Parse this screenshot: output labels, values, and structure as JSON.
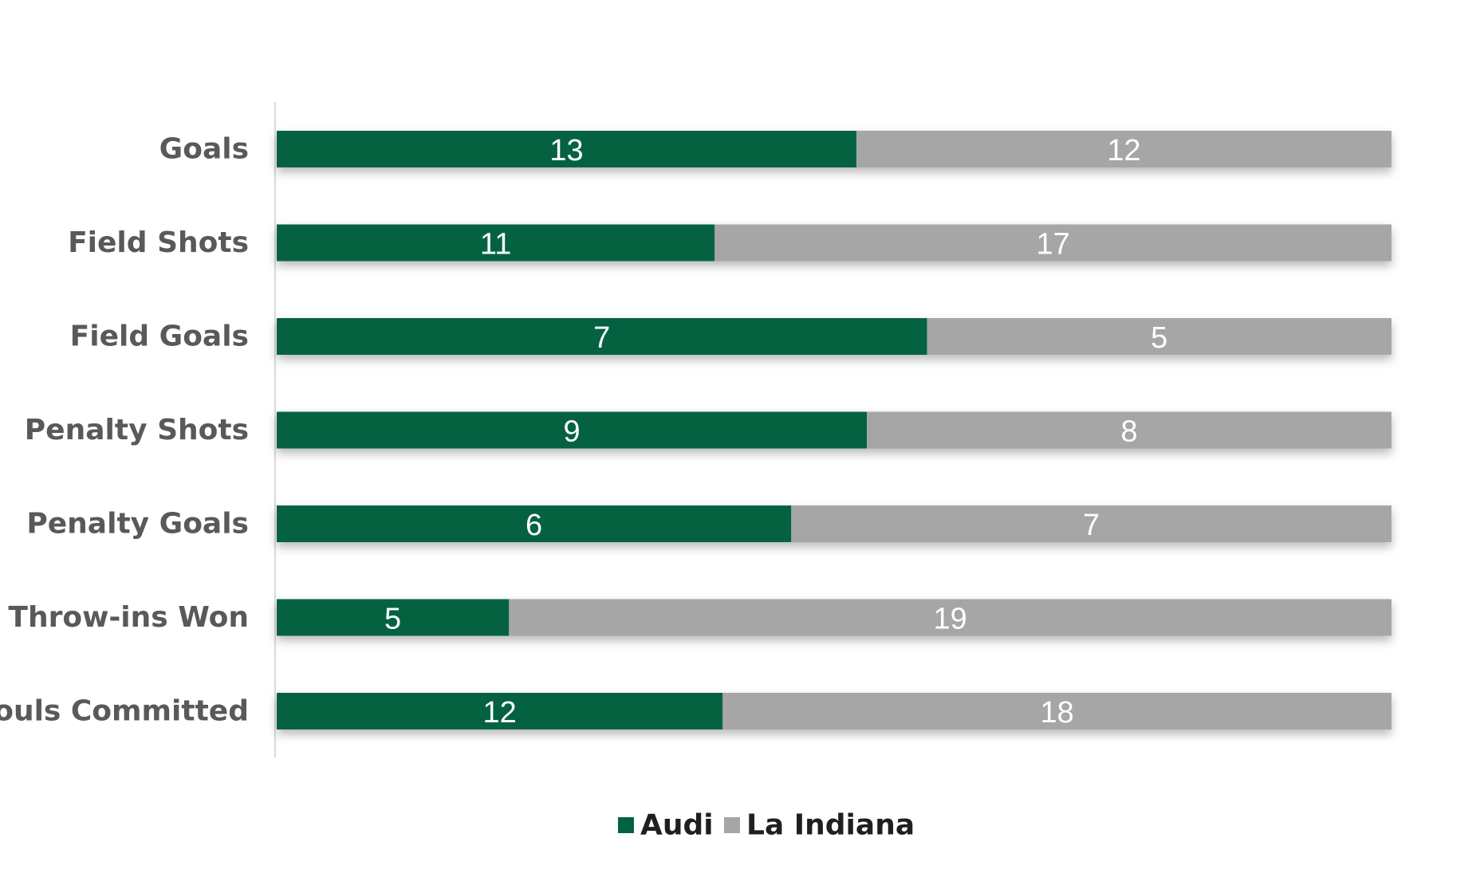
{
  "chart_data": {
    "type": "bar",
    "orientation": "horizontal",
    "stacked": "100%",
    "categories": [
      "Goals",
      "Field Shots",
      "Field Goals",
      "Penalty Shots",
      "Penalty Goals",
      "Throw-ins Won",
      "Fouls Committed"
    ],
    "series": [
      {
        "name": "Audi",
        "color": "#046241",
        "values": [
          13,
          11,
          7,
          9,
          6,
          5,
          12
        ]
      },
      {
        "name": "La Indiana",
        "color": "#a6a6a6",
        "values": [
          12,
          17,
          5,
          8,
          7,
          19,
          18
        ]
      }
    ],
    "title": "",
    "xlabel": "",
    "ylabel": "",
    "grid": false,
    "legend_position": "bottom"
  }
}
